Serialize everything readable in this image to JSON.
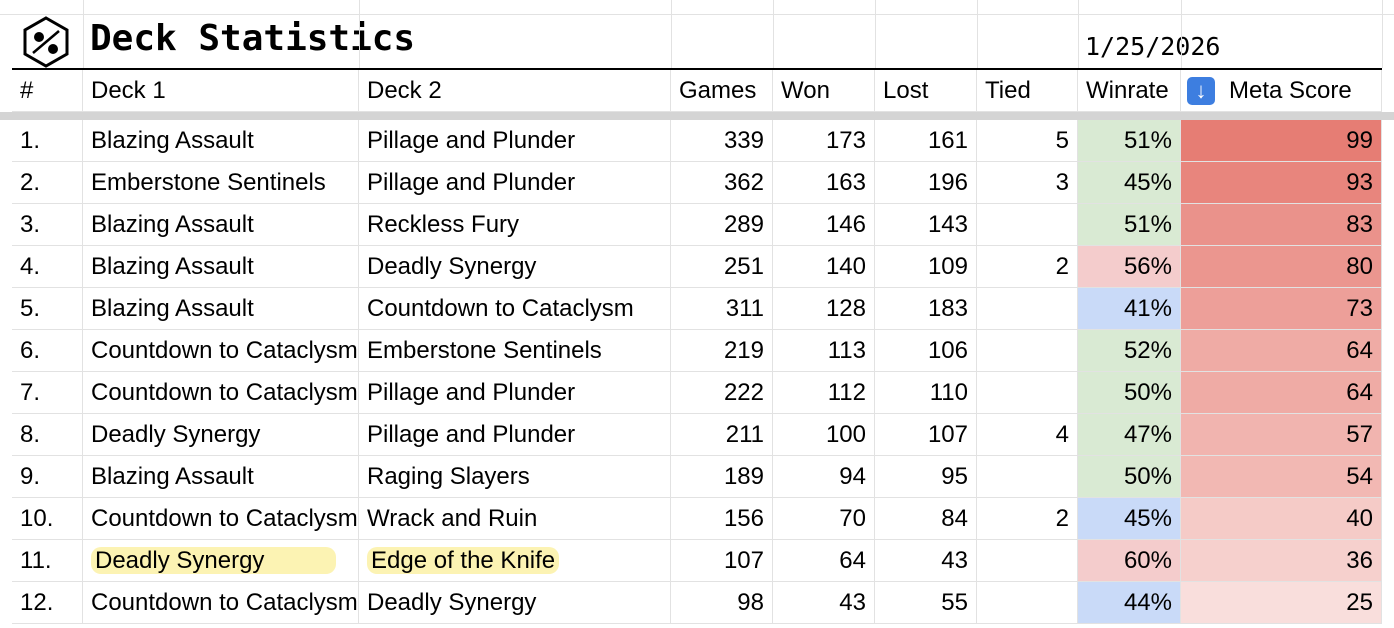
{
  "header": {
    "title": "Deck Statistics",
    "date": "1/25/2026"
  },
  "table": {
    "columns": [
      "#",
      "Deck 1",
      "Deck 2",
      "Games",
      "Won",
      "Lost",
      "Tied",
      "Winrate",
      "Meta Score"
    ],
    "rows": [
      {
        "rank": "1.",
        "deck1": "Blazing Assault",
        "deck2": "Pillage and Plunder",
        "games": 339,
        "won": 173,
        "lost": 161,
        "tied": 5,
        "winrate": "51%",
        "winrate_color": "#d9ead3",
        "meta": 99
      },
      {
        "rank": "2.",
        "deck1": "Emberstone Sentinels",
        "deck2": "Pillage and Plunder",
        "games": 362,
        "won": 163,
        "lost": 196,
        "tied": 3,
        "winrate": "45%",
        "winrate_color": "#d9ead3",
        "meta": 93
      },
      {
        "rank": "3.",
        "deck1": "Blazing Assault",
        "deck2": "Reckless Fury",
        "games": 289,
        "won": 146,
        "lost": 143,
        "tied": null,
        "winrate": "51%",
        "winrate_color": "#d9ead3",
        "meta": 83
      },
      {
        "rank": "4.",
        "deck1": "Blazing Assault",
        "deck2": "Deadly Synergy",
        "games": 251,
        "won": 140,
        "lost": 109,
        "tied": 2,
        "winrate": "56%",
        "winrate_color": "#f4cccc",
        "meta": 80
      },
      {
        "rank": "5.",
        "deck1": "Blazing Assault",
        "deck2": "Countdown to Cataclysm",
        "games": 311,
        "won": 128,
        "lost": 183,
        "tied": null,
        "winrate": "41%",
        "winrate_color": "#c9daf8",
        "meta": 73
      },
      {
        "rank": "6.",
        "deck1": "Countdown to Cataclysm",
        "deck2": "Emberstone Sentinels",
        "games": 219,
        "won": 113,
        "lost": 106,
        "tied": null,
        "winrate": "52%",
        "winrate_color": "#d9ead3",
        "meta": 64
      },
      {
        "rank": "7.",
        "deck1": "Countdown to Cataclysm",
        "deck2": "Pillage and Plunder",
        "games": 222,
        "won": 112,
        "lost": 110,
        "tied": null,
        "winrate": "50%",
        "winrate_color": "#d9ead3",
        "meta": 64
      },
      {
        "rank": "8.",
        "deck1": "Deadly Synergy",
        "deck2": "Pillage and Plunder",
        "games": 211,
        "won": 100,
        "lost": 107,
        "tied": 4,
        "winrate": "47%",
        "winrate_color": "#d9ead3",
        "meta": 57
      },
      {
        "rank": "9.",
        "deck1": "Blazing Assault",
        "deck2": "Raging Slayers",
        "games": 189,
        "won": 94,
        "lost": 95,
        "tied": null,
        "winrate": "50%",
        "winrate_color": "#d9ead3",
        "meta": 54
      },
      {
        "rank": "10.",
        "deck1": "Countdown to Cataclysm",
        "deck2": "Wrack and Ruin",
        "games": 156,
        "won": 70,
        "lost": 84,
        "tied": 2,
        "winrate": "45%",
        "winrate_color": "#c9daf8",
        "meta": 40
      },
      {
        "rank": "11.",
        "deck1": "Deadly Synergy",
        "deck2": "Edge of the Knife",
        "games": 107,
        "won": 64,
        "lost": 43,
        "tied": null,
        "winrate": "60%",
        "winrate_color": "#f4cccc",
        "meta": 36
      },
      {
        "rank": "12.",
        "deck1": "Countdown to Cataclysm",
        "deck2": "Deadly Synergy",
        "games": 98,
        "won": 43,
        "lost": 55,
        "tied": null,
        "winrate": "44%",
        "winrate_color": "#c9daf8",
        "meta": 25
      }
    ]
  }
}
